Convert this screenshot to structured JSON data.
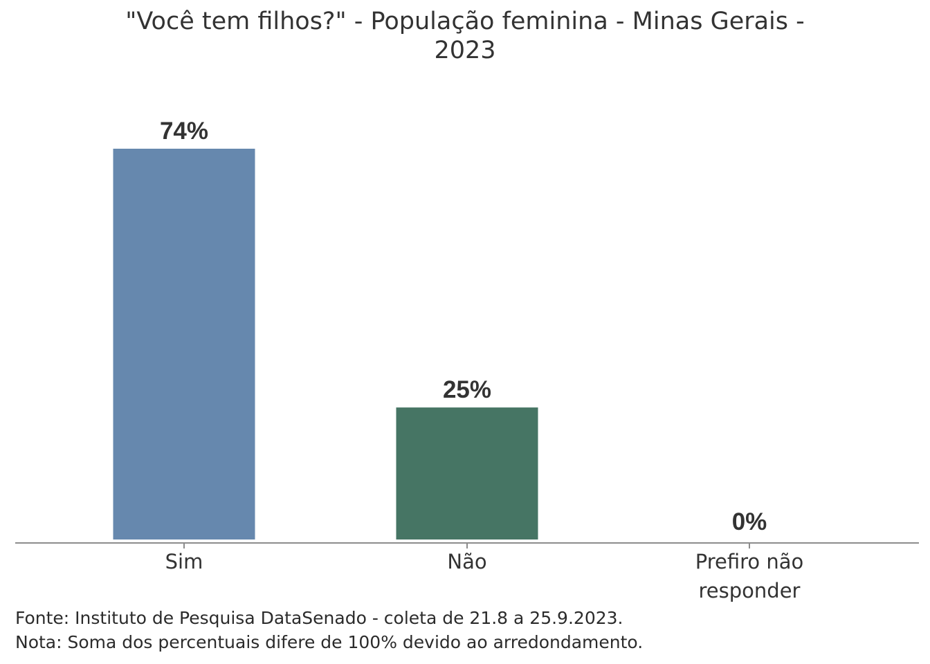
{
  "title_lines": [
    "\"Você tem filhos?\" - População feminina - Minas Gerais -",
    "2023"
  ],
  "chart_data": {
    "type": "bar",
    "title": "\"Você tem filhos?\" - População feminina - Minas Gerais - 2023",
    "categories": [
      "Sim",
      "Não",
      "Prefiro não responder"
    ],
    "category_label_lines": [
      [
        "Sim"
      ],
      [
        "Não"
      ],
      [
        "Prefiro não",
        "responder"
      ]
    ],
    "values": [
      74,
      25,
      0
    ],
    "value_labels": [
      "74%",
      "25%",
      "0%"
    ],
    "colors": [
      "#6688ae",
      "#467564",
      "#8a8a8a"
    ],
    "xlabel": "",
    "ylabel": "",
    "ylim": [
      0,
      74
    ],
    "grid": false,
    "legend": "none"
  },
  "footer": {
    "source": "Fonte: Instituto de Pesquisa DataSenado - coleta de 21.8 a 25.9.2023.",
    "note": "Nota: Soma dos percentuais difere de 100% devido ao arredondamento."
  }
}
